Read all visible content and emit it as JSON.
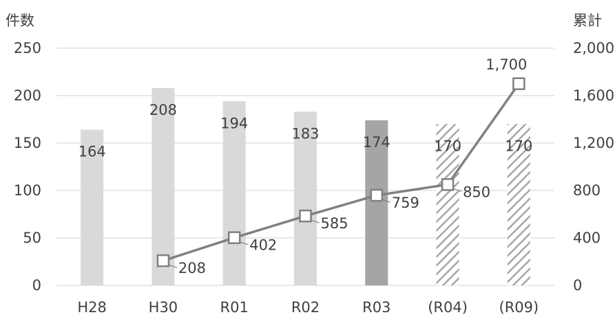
{
  "chart_data": {
    "type": "bar",
    "categories": [
      "H28",
      "H30",
      "R01",
      "R02",
      "R03",
      "(R04)",
      "(R09)"
    ],
    "series": [
      {
        "type": "bar",
        "axis": "left",
        "values": [
          164,
          208,
          194,
          183,
          174,
          170,
          170
        ],
        "labels": [
          "164",
          "208",
          "194",
          "183",
          "174",
          "170",
          "170"
        ],
        "styles": [
          "light",
          "light",
          "light",
          "light",
          "dark",
          "hatched",
          "hatched"
        ]
      },
      {
        "type": "line",
        "axis": "right",
        "values": [
          null,
          208,
          402,
          585,
          759,
          850,
          1700
        ],
        "labels": [
          "",
          "208",
          "402",
          "585",
          "759",
          "850",
          "1,700"
        ],
        "marker": "square"
      }
    ],
    "y_left": {
      "title": "件数",
      "range": [
        0,
        250
      ],
      "ticks": [
        0,
        50,
        100,
        150,
        200,
        250
      ],
      "tick_labels": [
        "0",
        "50",
        "100",
        "150",
        "200",
        "250"
      ]
    },
    "y_right": {
      "title": "累計",
      "range": [
        0,
        2000
      ],
      "ticks": [
        0,
        400,
        800,
        1200,
        1600,
        2000
      ],
      "tick_labels": [
        "0",
        "400",
        "800",
        "1,200",
        "1,600",
        "2,000"
      ]
    },
    "grid": true,
    "colors": {
      "bar_light": "#d9d9d9",
      "bar_dark": "#a5a5a5",
      "hatch": "#a6a6a6",
      "line": "#808080",
      "grid": "#d9d9d9",
      "text": "#404040"
    }
  }
}
